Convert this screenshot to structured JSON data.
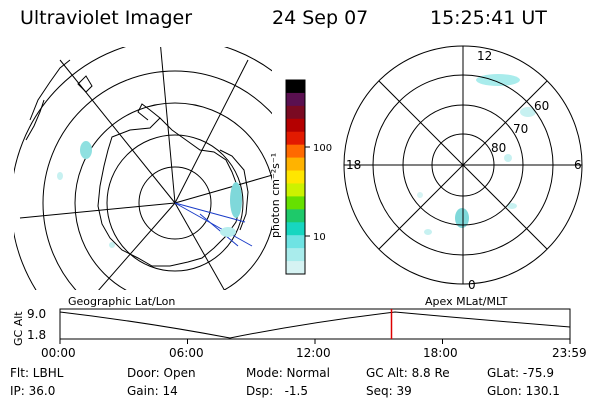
{
  "header": {
    "title": "Ultraviolet Imager",
    "date": "24 Sep 07",
    "time": "15:25:41 UT"
  },
  "colorbar": {
    "unit_label": "photon cm⁻²s⁻¹",
    "ticks": [
      "100",
      "10"
    ],
    "colors": [
      "#000000",
      "#5a1050",
      "#7a0a22",
      "#b40000",
      "#e21a00",
      "#ff6a00",
      "#ffb300",
      "#ffe600",
      "#ccf200",
      "#66e000",
      "#1ec96a",
      "#17d6c0",
      "#6fe3e3",
      "#a9ecec",
      "#d6f3f3"
    ]
  },
  "left_map": {
    "label": "Geographic Lat/Lon"
  },
  "right_map": {
    "label": "Apex MLat/MLT",
    "mlt_labels": {
      "top": "12",
      "left": "18",
      "right": "6",
      "bottom": "0"
    },
    "lat_labels": [
      "60",
      "70",
      "80"
    ]
  },
  "altitude_plot": {
    "ylabel": "GC Alt",
    "yticks": [
      "9.0",
      "1.8"
    ],
    "xticks": [
      "00:00",
      "06:00",
      "12:00",
      "18:00",
      "23:59"
    ],
    "current_time_fraction": 0.65,
    "marker_color": "#dd0000"
  },
  "info": {
    "col1": {
      "filter": "Flt: LBHL",
      "ip": "IP: 36.0"
    },
    "col2": {
      "door": "Door: Open",
      "gain": "Gain: 14"
    },
    "col3": {
      "mode": "Mode: Normal",
      "dsp": "Dsp:   -1.5"
    },
    "col4": {
      "gcalt": "GC Alt: 8.8 Re",
      "seq": "Seq: 39"
    },
    "col5": {
      "glat": "GLat: -75.9",
      "glon": "GLon: 130.1"
    }
  },
  "colors": {
    "aurora": "#9fe6e6",
    "aurora_dark": "#6fd2d8",
    "grid": "#000000",
    "map_line": "#1a3cc8"
  }
}
